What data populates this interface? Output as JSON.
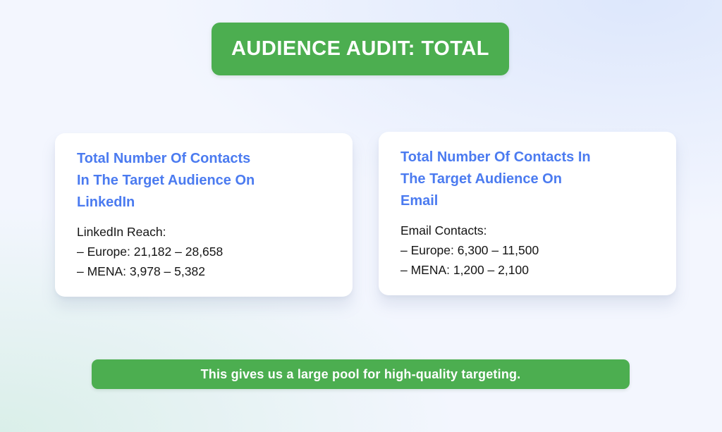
{
  "page": {
    "title_banner": "AUDIENCE AUDIT: TOTAL",
    "footer_banner": "This gives us a large pool for high-quality targeting."
  },
  "colors": {
    "banner_green": "#4cae50",
    "heading_blue": "#4b7bf0",
    "body_text": "#151515",
    "card_background": "#ffffff"
  },
  "cards": [
    {
      "id": "linkedin",
      "heading_lines": [
        "Total Number Of Contacts",
        "In The Target Audience On",
        "LinkedIn"
      ],
      "body_lines": [
        "LinkedIn Reach:",
        "– Europe: 21,182 – 28,658",
        "– MENA: 3,978 – 5,382"
      ]
    },
    {
      "id": "email",
      "heading_lines": [
        "Total Number Of Contacts In",
        "The Target Audience On",
        "Email"
      ],
      "body_lines": [
        "Email Contacts:",
        "– Europe: 6,300 – 11,500",
        "– MENA: 1,200 – 2,100"
      ]
    }
  ]
}
